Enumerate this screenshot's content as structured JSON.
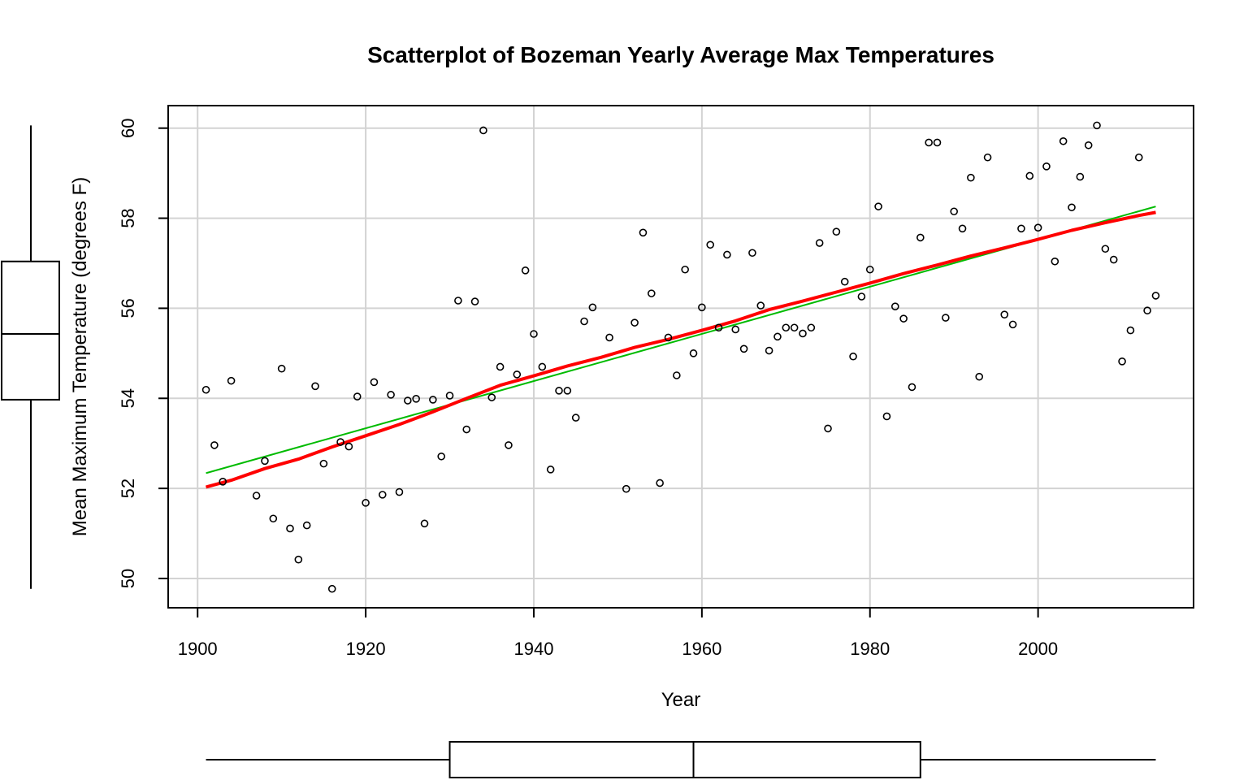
{
  "chart_data": {
    "type": "scatter",
    "title": "Scatterplot of Bozeman Yearly Average Max Temperatures",
    "xlabel": "Year",
    "ylabel": "Mean Maximum Temperature (degrees F)",
    "xlim": [
      1896.5,
      2018.5
    ],
    "ylim": [
      49.35,
      60.5
    ],
    "x_ticks": [
      1900,
      1920,
      1940,
      1960,
      1980,
      2000
    ],
    "y_ticks": [
      50,
      52,
      54,
      56,
      58,
      60
    ],
    "grid": true,
    "colors": {
      "points": "#000000",
      "smooth": "#ff0000",
      "linear": "#00bb00",
      "grid": "#d3d3d3"
    },
    "points": [
      [
        1901,
        54.19
      ],
      [
        1902,
        52.96
      ],
      [
        1903,
        52.15
      ],
      [
        1904,
        54.39
      ],
      [
        1907,
        51.84
      ],
      [
        1908,
        52.61
      ],
      [
        1909,
        51.33
      ],
      [
        1910,
        54.66
      ],
      [
        1911,
        51.11
      ],
      [
        1912,
        50.42
      ],
      [
        1913,
        51.18
      ],
      [
        1914,
        54.27
      ],
      [
        1915,
        52.55
      ],
      [
        1916,
        49.77
      ],
      [
        1917,
        53.03
      ],
      [
        1918,
        52.93
      ],
      [
        1919,
        54.04
      ],
      [
        1920,
        51.68
      ],
      [
        1921,
        54.36
      ],
      [
        1922,
        51.86
      ],
      [
        1923,
        54.08
      ],
      [
        1924,
        51.92
      ],
      [
        1925,
        53.95
      ],
      [
        1926,
        53.99
      ],
      [
        1927,
        51.22
      ],
      [
        1928,
        53.97
      ],
      [
        1929,
        52.71
      ],
      [
        1930,
        54.06
      ],
      [
        1931,
        56.17
      ],
      [
        1932,
        53.31
      ],
      [
        1933,
        56.15
      ],
      [
        1934,
        59.95
      ],
      [
        1935,
        54.02
      ],
      [
        1936,
        54.7
      ],
      [
        1937,
        52.96
      ],
      [
        1938,
        54.53
      ],
      [
        1939,
        56.84
      ],
      [
        1940,
        55.43
      ],
      [
        1941,
        54.7
      ],
      [
        1942,
        52.42
      ],
      [
        1943,
        54.17
      ],
      [
        1944,
        54.17
      ],
      [
        1945,
        53.57
      ],
      [
        1946,
        55.71
      ],
      [
        1947,
        56.02
      ],
      [
        1949,
        55.35
      ],
      [
        1951,
        51.99
      ],
      [
        1952,
        55.68
      ],
      [
        1953,
        57.68
      ],
      [
        1954,
        56.33
      ],
      [
        1955,
        52.12
      ],
      [
        1956,
        55.35
      ],
      [
        1957,
        54.51
      ],
      [
        1958,
        56.86
      ],
      [
        1959,
        55.0
      ],
      [
        1960,
        56.02
      ],
      [
        1961,
        57.41
      ],
      [
        1962,
        55.57
      ],
      [
        1963,
        57.19
      ],
      [
        1964,
        55.53
      ],
      [
        1965,
        55.1
      ],
      [
        1966,
        57.23
      ],
      [
        1967,
        56.06
      ],
      [
        1968,
        55.06
      ],
      [
        1969,
        55.37
      ],
      [
        1970,
        55.57
      ],
      [
        1971,
        55.57
      ],
      [
        1972,
        55.44
      ],
      [
        1973,
        55.57
      ],
      [
        1974,
        57.45
      ],
      [
        1975,
        53.33
      ],
      [
        1976,
        57.7
      ],
      [
        1977,
        56.59
      ],
      [
        1978,
        54.93
      ],
      [
        1979,
        56.26
      ],
      [
        1980,
        56.86
      ],
      [
        1981,
        58.26
      ],
      [
        1982,
        53.6
      ],
      [
        1983,
        56.04
      ],
      [
        1984,
        55.77
      ],
      [
        1985,
        54.25
      ],
      [
        1986,
        57.57
      ],
      [
        1987,
        59.68
      ],
      [
        1988,
        59.68
      ],
      [
        1989,
        55.79
      ],
      [
        1990,
        58.15
      ],
      [
        1991,
        57.77
      ],
      [
        1992,
        58.9
      ],
      [
        1993,
        54.48
      ],
      [
        1994,
        59.35
      ],
      [
        1996,
        55.86
      ],
      [
        1997,
        55.64
      ],
      [
        1998,
        57.77
      ],
      [
        1999,
        58.94
      ],
      [
        2000,
        57.79
      ],
      [
        2001,
        59.15
      ],
      [
        2002,
        57.04
      ],
      [
        2003,
        59.71
      ],
      [
        2004,
        58.24
      ],
      [
        2005,
        58.92
      ],
      [
        2006,
        59.62
      ],
      [
        2007,
        60.06
      ],
      [
        2008,
        57.32
      ],
      [
        2009,
        57.08
      ],
      [
        2010,
        54.82
      ],
      [
        2011,
        55.51
      ],
      [
        2012,
        59.35
      ],
      [
        2013,
        55.95
      ],
      [
        2014,
        56.28
      ]
    ],
    "smooth_line": [
      [
        1901,
        52.03
      ],
      [
        1904,
        52.18
      ],
      [
        1908,
        52.44
      ],
      [
        1912,
        52.65
      ],
      [
        1916,
        52.92
      ],
      [
        1920,
        53.17
      ],
      [
        1924,
        53.42
      ],
      [
        1928,
        53.7
      ],
      [
        1932,
        54.0
      ],
      [
        1936,
        54.29
      ],
      [
        1940,
        54.5
      ],
      [
        1944,
        54.72
      ],
      [
        1948,
        54.91
      ],
      [
        1952,
        55.13
      ],
      [
        1956,
        55.31
      ],
      [
        1960,
        55.51
      ],
      [
        1964,
        55.72
      ],
      [
        1968,
        55.97
      ],
      [
        1972,
        56.16
      ],
      [
        1976,
        56.36
      ],
      [
        1980,
        56.56
      ],
      [
        1984,
        56.77
      ],
      [
        1988,
        56.96
      ],
      [
        1992,
        57.16
      ],
      [
        1996,
        57.34
      ],
      [
        2000,
        57.53
      ],
      [
        2004,
        57.73
      ],
      [
        2008,
        57.9
      ],
      [
        2012,
        58.06
      ],
      [
        2014,
        58.13
      ]
    ],
    "linear_fit": {
      "x": [
        1901,
        2014
      ],
      "y": [
        52.34,
        58.26
      ]
    },
    "x_boxplot": {
      "min": 1901,
      "q1": 1930,
      "median": 1959,
      "q3": 1986,
      "max": 2014
    },
    "y_boxplot": {
      "min": 49.77,
      "q1": 53.97,
      "median": 55.43,
      "q3": 57.04,
      "max": 60.06
    }
  }
}
